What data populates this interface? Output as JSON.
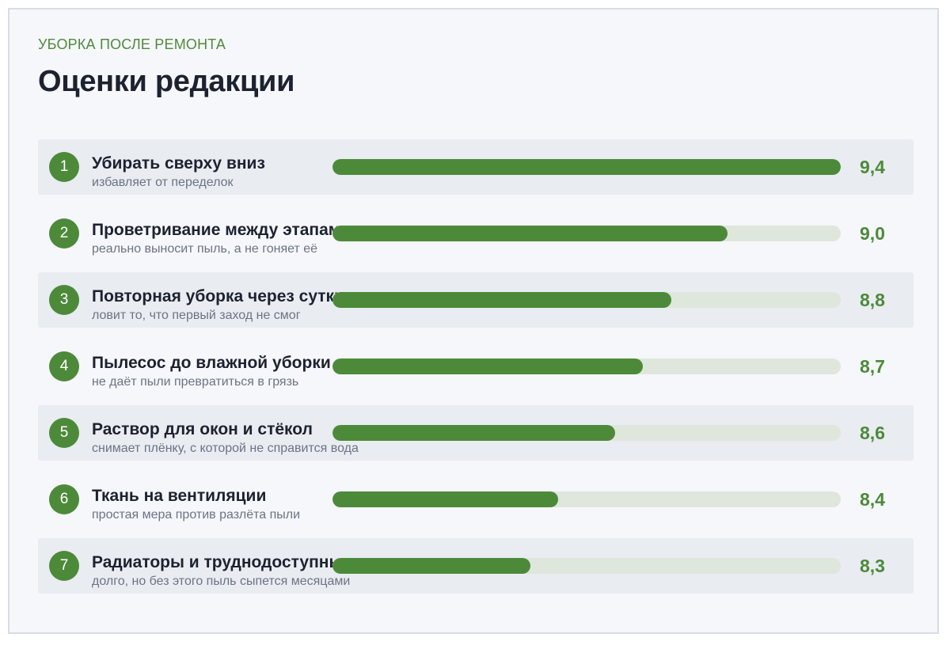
{
  "header": {
    "eyebrow": "УБОРКА ПОСЛЕ РЕМОНТА",
    "title": "Оценки редакции"
  },
  "colors": {
    "accent": "#4c8a3a",
    "track": "#dfe6dc",
    "text": "#1d2230",
    "muted": "#6c7386",
    "row_alt": "#e9ecf1"
  },
  "chart_data": {
    "type": "bar",
    "orientation": "horizontal",
    "title": "Оценки редакции",
    "subtitle": "УБОРКА ПОСЛЕ РЕМОНТА",
    "categories": [
      "Убирать сверху вниз",
      "Проветривание между этапами",
      "Повторная уборка через сутки",
      "Пылесос до влажной уборки",
      "Раствор для окон и стёкол",
      "Ткань на вентиляции",
      "Радиаторы и труднодоступные"
    ],
    "values": [
      9.4,
      9.0,
      8.8,
      8.7,
      8.6,
      8.4,
      8.3
    ],
    "xlim": [
      7.6,
      9.4
    ],
    "items": [
      {
        "rank": "1",
        "label": "Убирать сверху вниз",
        "note": "избавляет от переделок",
        "score": 9.4,
        "score_text": "9,4"
      },
      {
        "rank": "2",
        "label": "Проветривание между этапами",
        "note": "реально выносит пыль, а не гоняет её",
        "score": 9.0,
        "score_text": "9,0"
      },
      {
        "rank": "3",
        "label": "Повторная уборка через сутки",
        "note": "ловит то, что первый заход не смог",
        "score": 8.8,
        "score_text": "8,8"
      },
      {
        "rank": "4",
        "label": "Пылесос до влажной уборки",
        "note": "не даёт пыли превратиться в грязь",
        "score": 8.7,
        "score_text": "8,7"
      },
      {
        "rank": "5",
        "label": "Раствор для окон и стёкол",
        "note": "снимает плёнку, с которой не справится вода",
        "score": 8.6,
        "score_text": "8,6"
      },
      {
        "rank": "6",
        "label": "Ткань на вентиляции",
        "note": "простая мера против разлёта пыли",
        "score": 8.4,
        "score_text": "8,4"
      },
      {
        "rank": "7",
        "label": "Радиаторы и труднодоступные",
        "note": "долго, но без этого пыль сыпется месяцами",
        "score": 8.3,
        "score_text": "8,3"
      }
    ]
  }
}
